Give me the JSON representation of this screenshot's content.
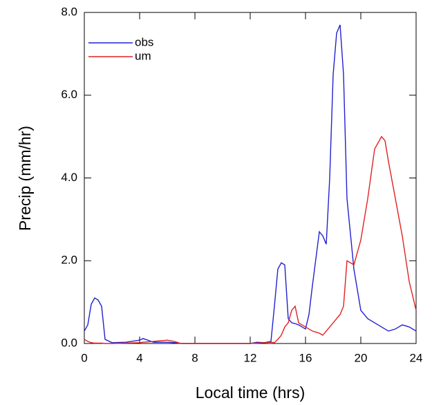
{
  "chart_data": {
    "type": "line",
    "xlabel": "Local time (hrs)",
    "ylabel": "Precip (mm/hr)",
    "x": [
      0,
      0.25,
      0.5,
      0.75,
      1,
      1.25,
      1.5,
      2,
      3,
      4,
      4.25,
      5,
      6,
      6.5,
      7,
      8,
      10,
      12,
      12.5,
      13,
      13.5,
      13.75,
      14,
      14.25,
      14.5,
      14.75,
      15,
      15.25,
      15.5,
      16,
      16.25,
      16.5,
      17,
      17.25,
      17.5,
      17.75,
      18,
      18.25,
      18.5,
      18.75,
      19,
      19.5,
      20,
      20.5,
      21,
      21.5,
      21.75,
      22,
      22.5,
      23,
      23.5,
      24
    ],
    "series": [
      {
        "name": "obs",
        "color": "#2020d0",
        "values": [
          0.3,
          0.45,
          0.95,
          1.1,
          1.05,
          0.9,
          0.1,
          0.02,
          0.03,
          0.08,
          0.12,
          0.03,
          0.03,
          0.02,
          0,
          0,
          0,
          0,
          0.03,
          0.02,
          0.05,
          0.9,
          1.8,
          1.95,
          1.9,
          0.6,
          0.5,
          0.48,
          0.45,
          0.35,
          0.7,
          1.4,
          2.7,
          2.6,
          2.4,
          4.0,
          6.5,
          7.5,
          7.7,
          6.5,
          3.5,
          1.8,
          0.8,
          0.6,
          0.5,
          0.4,
          0.35,
          0.3,
          0.35,
          0.45,
          0.4,
          0.3
        ]
      },
      {
        "name": "um",
        "color": "#e02020",
        "values": [
          0.1,
          0.05,
          0.02,
          0.01,
          0.01,
          0.01,
          0,
          0,
          0.01,
          0.02,
          0.03,
          0.05,
          0.08,
          0.05,
          0,
          0,
          0,
          0,
          0.01,
          0.02,
          0.03,
          0.02,
          0.1,
          0.2,
          0.4,
          0.5,
          0.8,
          0.9,
          0.5,
          0.4,
          0.35,
          0.3,
          0.25,
          0.2,
          0.3,
          0.4,
          0.5,
          0.6,
          0.7,
          0.9,
          2.0,
          1.9,
          2.5,
          3.5,
          4.7,
          5.0,
          4.9,
          4.4,
          3.5,
          2.6,
          1.5,
          0.8
        ]
      }
    ],
    "xlim": [
      0,
      24
    ],
    "xticks": [
      0,
      4,
      8,
      12,
      16,
      20,
      24
    ],
    "ylim": [
      0,
      8
    ],
    "yticks": [
      {
        "value": 0,
        "label": "0.0"
      },
      {
        "value": 2,
        "label": "2.0"
      },
      {
        "value": 4,
        "label": "4.0"
      },
      {
        "value": 6,
        "label": "6.0"
      },
      {
        "value": 8,
        "label": "8.0"
      }
    ],
    "legend": "upper left",
    "grid": false
  }
}
